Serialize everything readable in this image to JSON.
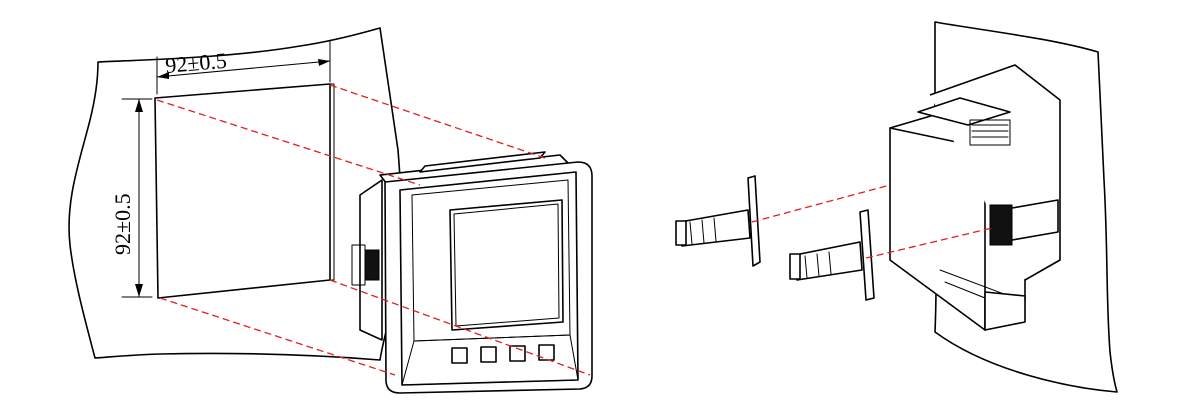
{
  "dimensions": {
    "width_label": "92±0.5",
    "height_label": "92±0.5"
  },
  "colors": {
    "outline": "#000000",
    "guide_dash": "#e02020",
    "background": "#ffffff"
  }
}
